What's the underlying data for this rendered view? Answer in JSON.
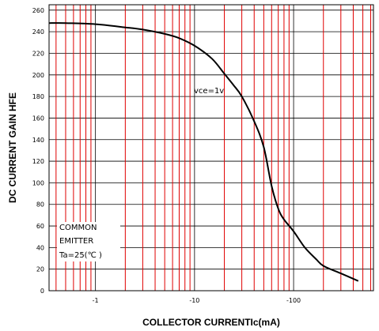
{
  "chart_data": {
    "type": "line",
    "title": "",
    "xlabel": "COLLECTOR CURRENTIc(mA)",
    "ylabel": "DC CURRENT GAIN  HFE",
    "x_scale": "log",
    "xlim": [
      -0.34,
      -640
    ],
    "ylim": [
      0,
      265
    ],
    "x_ticks": [
      {
        "value": -1,
        "label": "-1"
      },
      {
        "value": -10,
        "label": "-10"
      },
      {
        "value": -100,
        "label": "-100"
      }
    ],
    "y_ticks": [
      0,
      20,
      40,
      60,
      80,
      100,
      120,
      140,
      160,
      180,
      200,
      220,
      240,
      260
    ],
    "grid": true,
    "grid_color": "#e00000",
    "curve_color": "#000000",
    "series": [
      {
        "name": "vce=1v",
        "points": [
          [
            -0.34,
            248
          ],
          [
            -0.5,
            248
          ],
          [
            -1,
            247
          ],
          [
            -2,
            244
          ],
          [
            -3,
            242
          ],
          [
            -5,
            238
          ],
          [
            -7,
            234
          ],
          [
            -10,
            227
          ],
          [
            -15,
            215
          ],
          [
            -20,
            201
          ],
          [
            -25,
            190
          ],
          [
            -30,
            180
          ],
          [
            -40,
            157
          ],
          [
            -50,
            133
          ],
          [
            -60,
            97
          ],
          [
            -70,
            76
          ],
          [
            -80,
            66
          ],
          [
            -100,
            55
          ],
          [
            -130,
            40
          ],
          [
            -170,
            29
          ],
          [
            -200,
            23
          ],
          [
            -300,
            16
          ],
          [
            -450,
            9
          ]
        ]
      }
    ],
    "annotations": {
      "curve_label": "vce=1v",
      "condition_lines": [
        "COMMON",
        "EMITTER",
        "Ta=25(℃ )"
      ]
    }
  }
}
